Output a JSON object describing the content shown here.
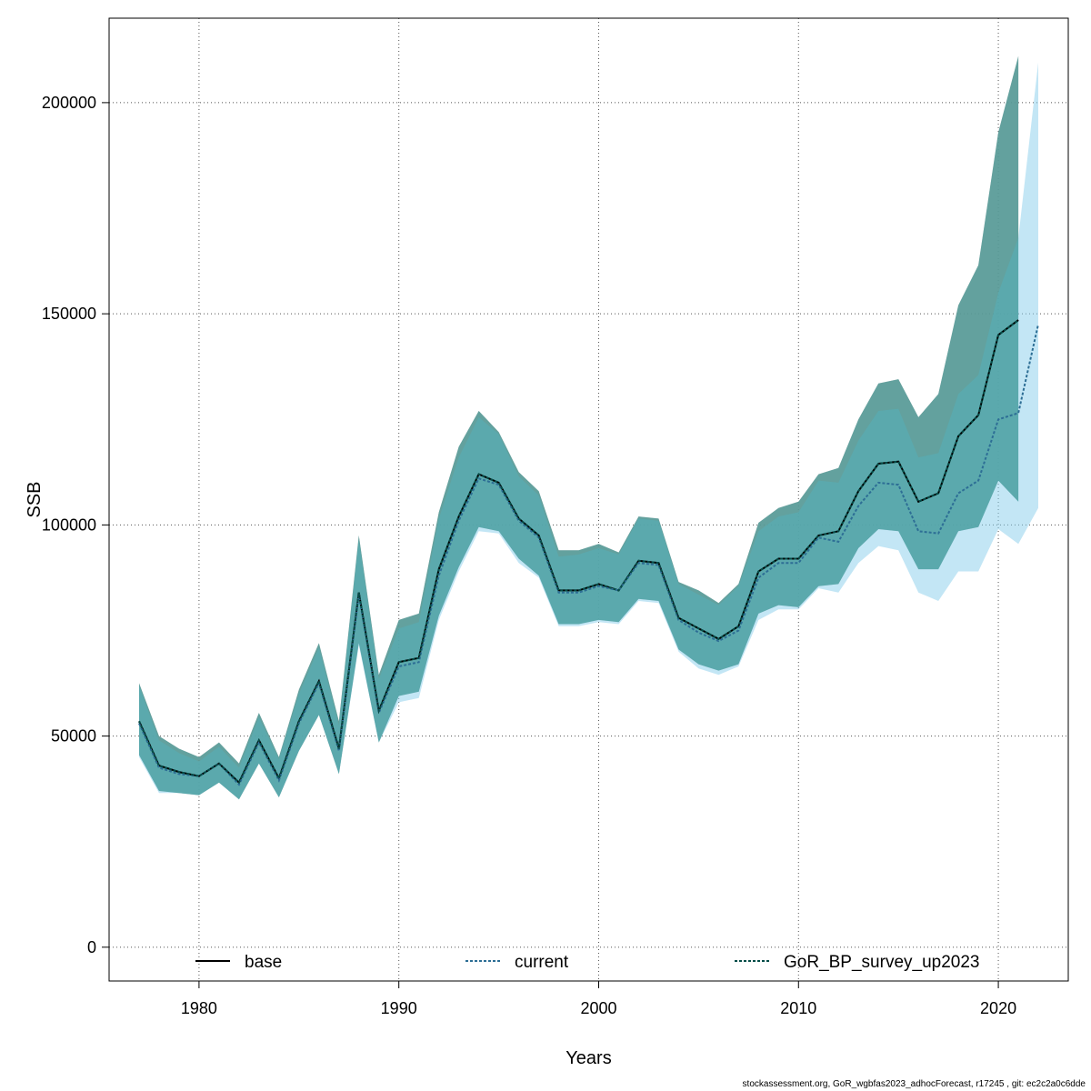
{
  "chart_data": {
    "type": "area",
    "xlabel": "Years",
    "ylabel": "SSB",
    "xlim": [
      1975.5,
      2023.5
    ],
    "ylim": [
      -8000,
      220000
    ],
    "xticks": [
      1980,
      1990,
      2000,
      2010,
      2020
    ],
    "yticks": [
      0,
      50000,
      100000,
      150000,
      200000
    ],
    "xtick_labels": [
      "1980",
      "1990",
      "2000",
      "2010",
      "2020"
    ],
    "ytick_labels": [
      "0",
      "50000",
      "100000",
      "150000",
      "200000"
    ],
    "grid": true,
    "legend_position": "bottom",
    "series": [
      {
        "name": "base",
        "color": "#000000",
        "band_color": "#999999",
        "years": [
          1977,
          1978,
          1979,
          1980,
          1981,
          1982,
          1983,
          1984,
          1985,
          1986,
          1987,
          1988,
          1989,
          1990,
          1991,
          1992,
          1993,
          1994,
          1995,
          1996,
          1997,
          1998,
          1999,
          2000,
          2001,
          2002,
          2003,
          2004,
          2005,
          2006,
          2007,
          2008,
          2009,
          2010,
          2011,
          2012,
          2013,
          2014,
          2015,
          2016,
          2017,
          2018,
          2019,
          2020,
          2021
        ],
        "values": [
          53500,
          43000,
          41500,
          40500,
          43500,
          39000,
          49000,
          40000,
          53500,
          63000,
          47000,
          84000,
          56000,
          67500,
          68500,
          89500,
          102000,
          112000,
          110000,
          101500,
          97500,
          84500,
          84500,
          86000,
          84500,
          91500,
          91000,
          78000,
          75500,
          73000,
          76000,
          89000,
          92000,
          92000,
          97500,
          98500,
          108000,
          114500,
          115000,
          105500,
          107500,
          121000,
          126000,
          145000,
          148500
        ],
        "lower": [
          45500,
          37000,
          36500,
          36000,
          39000,
          35000,
          43500,
          35500,
          46500,
          55000,
          41000,
          72000,
          48500,
          59500,
          60500,
          78500,
          90000,
          99500,
          98500,
          92000,
          88000,
          76500,
          76500,
          77500,
          77000,
          82500,
          82000,
          70500,
          67000,
          65500,
          67000,
          79000,
          81000,
          80500,
          85500,
          86000,
          94500,
          99000,
          98500,
          89500,
          89500,
          98500,
          99500,
          110500,
          105500
        ],
        "upper": [
          62500,
          50000,
          47000,
          45000,
          48500,
          43500,
          55500,
          45000,
          61000,
          72000,
          53500,
          97500,
          64500,
          77500,
          79000,
          103000,
          118500,
          127000,
          122000,
          112500,
          108000,
          94000,
          94000,
          95500,
          93500,
          102000,
          101500,
          86500,
          84500,
          81500,
          86000,
          100500,
          104000,
          105500,
          112000,
          113500,
          125000,
          133500,
          134500,
          125500,
          131000,
          152000,
          161500,
          193000,
          211000
        ]
      },
      {
        "name": "current",
        "color": "#2d6e95",
        "band_color": "#87ceeb",
        "years": [
          1977,
          1978,
          1979,
          1980,
          1981,
          1982,
          1983,
          1984,
          1985,
          1986,
          1987,
          1988,
          1989,
          1990,
          1991,
          1992,
          1993,
          1994,
          1995,
          1996,
          1997,
          1998,
          1999,
          2000,
          2001,
          2002,
          2003,
          2004,
          2005,
          2006,
          2007,
          2008,
          2009,
          2010,
          2011,
          2012,
          2013,
          2014,
          2015,
          2016,
          2017,
          2018,
          2019,
          2020,
          2021,
          2022
        ],
        "values": [
          53000,
          42500,
          41000,
          40500,
          43500,
          38500,
          48500,
          39500,
          53000,
          62500,
          46500,
          83500,
          55500,
          66500,
          67500,
          88000,
          101000,
          111000,
          109500,
          101000,
          97000,
          84000,
          84000,
          85500,
          84500,
          91000,
          90500,
          77500,
          74500,
          72500,
          75000,
          87500,
          91000,
          91000,
          97000,
          96000,
          104500,
          110000,
          109500,
          98500,
          98000,
          107500,
          110500,
          125000,
          126500,
          147500
        ],
        "lower": [
          45000,
          36500,
          36500,
          36000,
          39000,
          35000,
          43500,
          35500,
          46500,
          55000,
          41000,
          71500,
          48500,
          58000,
          59000,
          77500,
          89000,
          98500,
          98000,
          91000,
          87500,
          76000,
          76000,
          77000,
          76500,
          82000,
          81500,
          70000,
          66000,
          64500,
          66500,
          77500,
          80000,
          80000,
          85000,
          84000,
          91000,
          95000,
          94000,
          84000,
          82000,
          89000,
          89000,
          99000,
          95500,
          104000
        ],
        "upper": [
          62000,
          49000,
          46000,
          44000,
          47500,
          42500,
          54500,
          44500,
          60000,
          71000,
          52500,
          96500,
          63500,
          75500,
          77000,
          101500,
          116000,
          125500,
          121500,
          111500,
          107000,
          92500,
          93000,
          94500,
          93000,
          101500,
          101000,
          86000,
          83500,
          81000,
          85500,
          98500,
          102000,
          103000,
          110500,
          110000,
          120000,
          127000,
          127500,
          116000,
          117000,
          131000,
          135500,
          155000,
          168000,
          209500
        ]
      },
      {
        "name": "GoR_BP_survey_up2023",
        "color": "#064d48",
        "band_color": "#2a9a95",
        "years": [
          1977,
          1978,
          1979,
          1980,
          1981,
          1982,
          1983,
          1984,
          1985,
          1986,
          1987,
          1988,
          1989,
          1990,
          1991,
          1992,
          1993,
          1994,
          1995,
          1996,
          1997,
          1998,
          1999,
          2000,
          2001,
          2002,
          2003,
          2004,
          2005,
          2006,
          2007,
          2008,
          2009,
          2010,
          2011,
          2012,
          2013,
          2014,
          2015,
          2016,
          2017,
          2018,
          2019,
          2020,
          2021
        ],
        "values": [
          53500,
          43000,
          41500,
          40500,
          43500,
          39000,
          49000,
          40000,
          53500,
          63000,
          47000,
          84000,
          56000,
          67500,
          68500,
          89500,
          102000,
          112000,
          110000,
          101500,
          97500,
          84500,
          84500,
          86000,
          84500,
          91500,
          91000,
          78000,
          75500,
          73000,
          76000,
          89000,
          92000,
          92000,
          97500,
          98500,
          108000,
          114500,
          115000,
          105500,
          107500,
          121000,
          126000,
          145000,
          148500
        ],
        "lower": [
          45500,
          37000,
          36500,
          36000,
          39000,
          35000,
          43500,
          35500,
          46500,
          55000,
          41000,
          72000,
          48500,
          59500,
          60500,
          78500,
          90000,
          99500,
          98500,
          92000,
          88000,
          76500,
          76500,
          77500,
          77000,
          82500,
          82000,
          70500,
          67000,
          65500,
          67000,
          79000,
          81000,
          80500,
          85500,
          86000,
          94500,
          99000,
          98500,
          89500,
          89500,
          98500,
          99500,
          110500,
          105500
        ],
        "upper": [
          62500,
          50000,
          47000,
          45000,
          48500,
          43500,
          55500,
          45000,
          61000,
          72000,
          53500,
          97500,
          64500,
          77500,
          79000,
          103000,
          118500,
          127000,
          122000,
          112500,
          108000,
          94000,
          94000,
          95500,
          93500,
          102000,
          101500,
          86500,
          84500,
          81500,
          86000,
          100500,
          104000,
          105500,
          112000,
          113500,
          125000,
          133500,
          134500,
          125500,
          131000,
          152000,
          161500,
          193000,
          211000
        ]
      }
    ]
  },
  "footer": "stockassessment.org, GoR_wgbfas2023_adhocForecast, r17245 , git: ec2c2a0c6dde"
}
